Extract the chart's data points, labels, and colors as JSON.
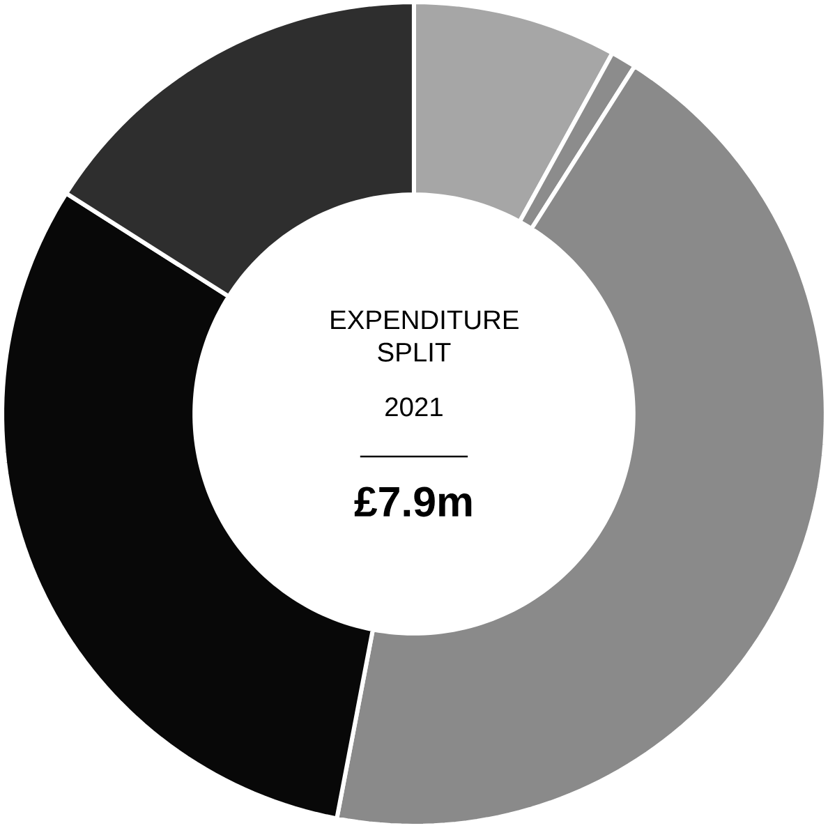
{
  "chart_data": {
    "type": "donut",
    "title": "EXPENDITURE SPLIT",
    "subtitle": "2021",
    "annotations": [
      "£7.9m"
    ],
    "categories": [
      null,
      null,
      null,
      null,
      null
    ],
    "values": [
      8,
      1,
      44,
      31,
      16
    ],
    "colors": [
      "#a6a6a6",
      "#8c8c8c",
      "#8a8a8a",
      "#080808",
      "#2e2e2e"
    ]
  }
}
